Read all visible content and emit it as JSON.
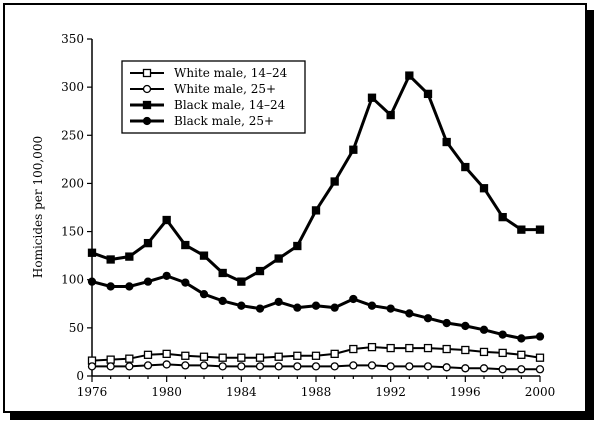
{
  "chart_data": {
    "type": "line",
    "ylabel": "Homicides per 100,000",
    "xlabel": "",
    "ylim": [
      0,
      350
    ],
    "xlim": [
      1976,
      2000
    ],
    "y_ticks": [
      0,
      50,
      100,
      150,
      200,
      250,
      300,
      350
    ],
    "x_ticks": [
      1976,
      1980,
      1984,
      1988,
      1992,
      1996,
      2000
    ],
    "legend_position": "top-left",
    "grid": false,
    "x": [
      1976,
      1977,
      1978,
      1979,
      1980,
      1981,
      1982,
      1983,
      1984,
      1985,
      1986,
      1987,
      1988,
      1989,
      1990,
      1991,
      1992,
      1993,
      1994,
      1995,
      1996,
      1997,
      1998,
      1999,
      2000
    ],
    "series": [
      {
        "name": "White male, 14–24",
        "marker": "open-square",
        "values": [
          16,
          17,
          18,
          22,
          23,
          21,
          20,
          19,
          19,
          19,
          20,
          21,
          21,
          23,
          28,
          30,
          29,
          29,
          29,
          28,
          27,
          25,
          24,
          22,
          19
        ]
      },
      {
        "name": "White male, 25+",
        "marker": "open-circle",
        "values": [
          10,
          10,
          10,
          11,
          12,
          11,
          11,
          10,
          10,
          10,
          10,
          10,
          10,
          10,
          11,
          11,
          10,
          10,
          10,
          9,
          8,
          8,
          7,
          7,
          7
        ]
      },
      {
        "name": "Black male, 14–24",
        "marker": "filled-square",
        "values": [
          128,
          121,
          124,
          138,
          162,
          136,
          125,
          107,
          98,
          109,
          122,
          135,
          172,
          202,
          235,
          289,
          271,
          312,
          293,
          243,
          217,
          195,
          165,
          152,
          152
        ]
      },
      {
        "name": "Black male, 25+",
        "marker": "filled-circle",
        "values": [
          98,
          93,
          93,
          98,
          104,
          97,
          85,
          78,
          73,
          70,
          77,
          71,
          73,
          71,
          80,
          73,
          70,
          65,
          60,
          55,
          52,
          48,
          43,
          39,
          41
        ]
      }
    ]
  }
}
